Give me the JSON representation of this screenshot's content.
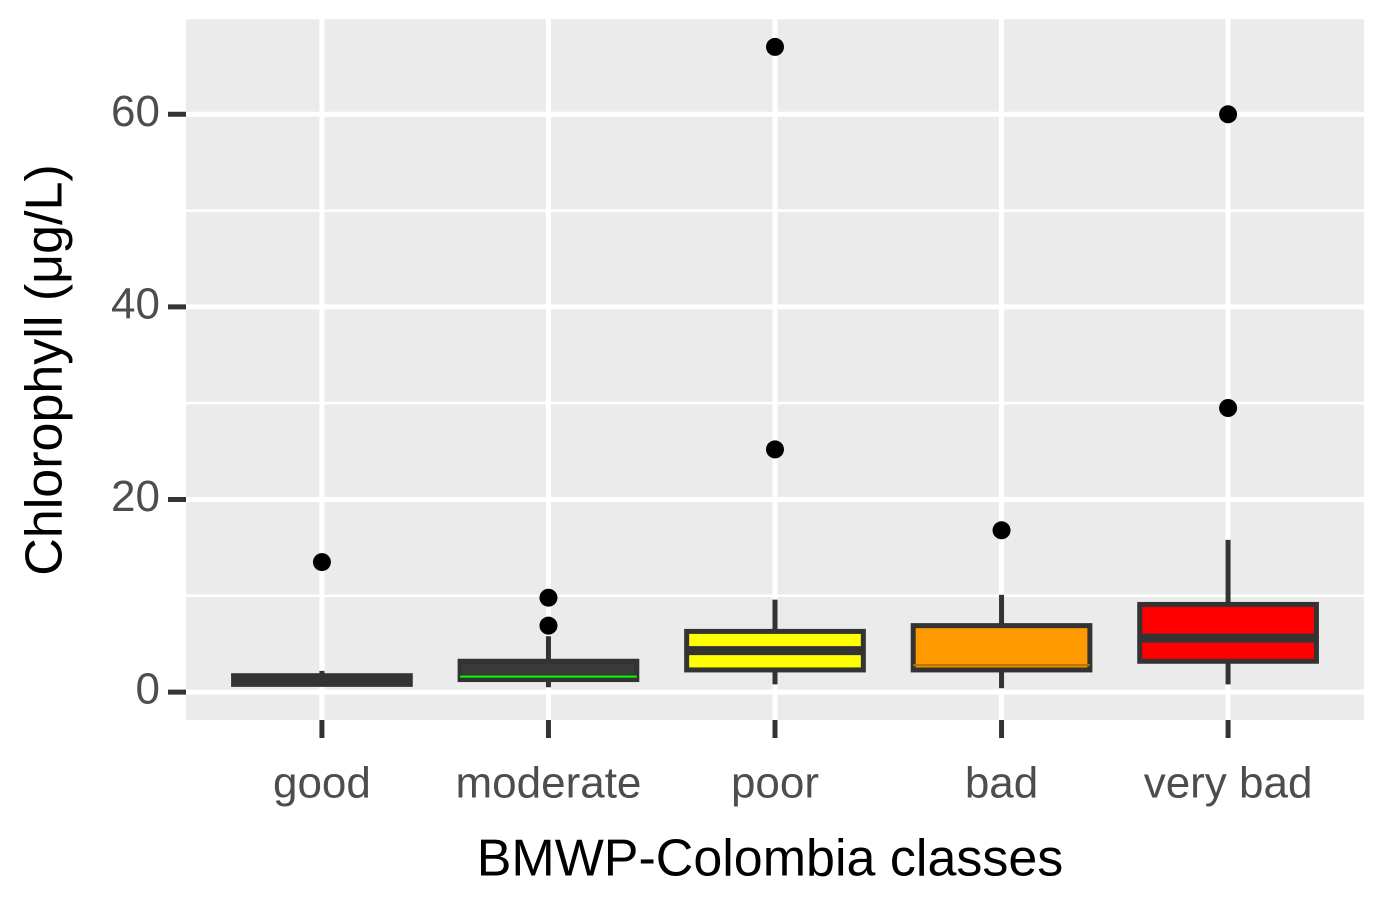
{
  "chart_data": {
    "type": "boxplot",
    "x_label": "BMWP-Colombia classes",
    "y_label": "Chlorophyll (μg/L)",
    "categories": [
      "good",
      "moderate",
      "poor",
      "bad",
      "very bad"
    ],
    "boxes": [
      {
        "low": 0.6,
        "q1": 0.8,
        "median": 1.3,
        "q3": 1.7,
        "high": 2.2,
        "outliers": [
          13.5
        ],
        "color": "#333333",
        "median_color": "#333333"
      },
      {
        "low": 0.5,
        "q1": 1.3,
        "median": 1.6,
        "q3": 3.2,
        "high": 5.8,
        "outliers": [
          9.8,
          6.9
        ],
        "color": "#3a3a3a",
        "median_color": "#00ff00"
      },
      {
        "low": 0.8,
        "q1": 2.3,
        "median": 4.3,
        "q3": 6.3,
        "high": 9.6,
        "outliers": [
          25.2,
          67.0
        ],
        "color": "#ffff00",
        "median_color": "#333333"
      },
      {
        "low": 0.4,
        "q1": 2.3,
        "median": 2.8,
        "q3": 6.9,
        "high": 10.1,
        "outliers": [
          16.8
        ],
        "color": "#ff9900",
        "median_color": "#b86e00"
      },
      {
        "low": 0.8,
        "q1": 3.2,
        "median": 5.6,
        "q3": 9.1,
        "high": 15.8,
        "outliers": [
          29.5,
          60.0
        ],
        "color": "#ff0000",
        "median_color": "#333333"
      }
    ],
    "ylim": [
      -2.9,
      70
    ],
    "yticks": [
      0,
      20,
      40,
      60
    ],
    "minor_yticks": [
      10,
      30,
      50,
      70
    ],
    "grid": true
  }
}
